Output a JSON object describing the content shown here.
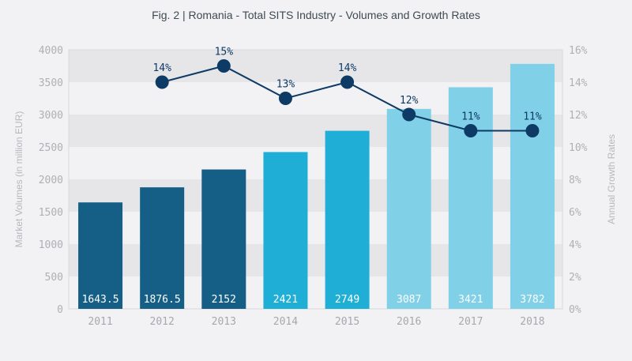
{
  "chart_data": {
    "type": "bar+line",
    "title": "Fig. 2 | Romania - Total SITS Industry - Volumes and Growth Rates",
    "ylabel": "Market Volumes (in million EUR)",
    "y2label": "Annual Growth Rates",
    "categories": [
      "2011",
      "2012",
      "2013",
      "2014",
      "2015",
      "2016",
      "2017",
      "2018"
    ],
    "bars": {
      "values": [
        1643.5,
        1876.5,
        2152,
        2421,
        2749,
        3087,
        3421,
        3782
      ],
      "labels": [
        "1643.5",
        "1876.5",
        "2152",
        "2421",
        "2749",
        "3087",
        "3421",
        "3782"
      ],
      "colors": [
        "#155f87",
        "#155f87",
        "#155f87",
        "#1fafd6",
        "#1fafd6",
        "#80d0e8",
        "#80d0e8",
        "#80d0e8"
      ]
    },
    "line": {
      "values": [
        null,
        14,
        15,
        13,
        14,
        12,
        11,
        11
      ],
      "labels": [
        "",
        "14%",
        "15%",
        "13%",
        "14%",
        "12%",
        "11%",
        "11%"
      ],
      "color": "#0e3a66"
    },
    "ylim": [
      0,
      4000
    ],
    "yticks": [
      "0",
      "500",
      "1000",
      "1500",
      "2000",
      "2500",
      "3000",
      "3500",
      "4000"
    ],
    "y2lim": [
      0,
      16
    ],
    "y2ticks": [
      "0%",
      "2%",
      "4%",
      "6%",
      "8%",
      "10%",
      "12%",
      "14%",
      "16%"
    ],
    "grid": "alternating bands"
  }
}
